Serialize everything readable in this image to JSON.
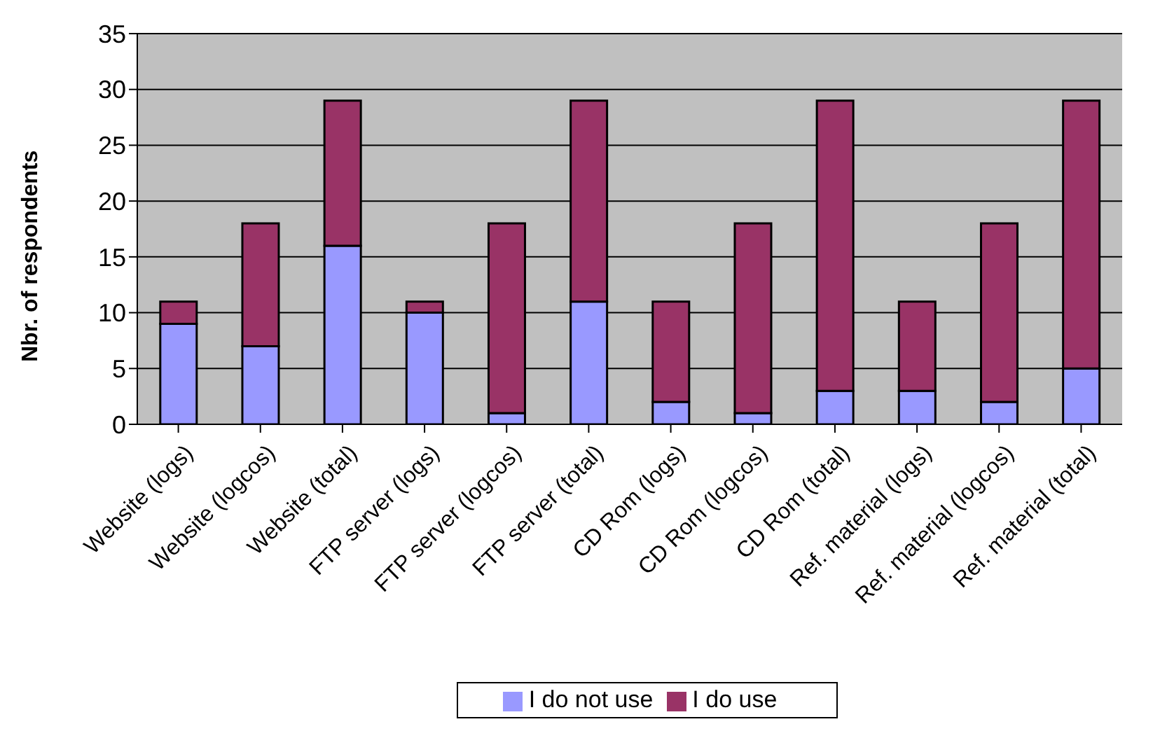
{
  "chart_data": {
    "type": "bar",
    "stacked": true,
    "ylabel": "Nbr. of respondents",
    "categories": [
      "Website (logs)",
      "Website (logcos)",
      "Website (total)",
      "FTP server (logs)",
      "FTP server (logcos)",
      "FTP server (total)",
      "CD Rom (logs)",
      "CD Rom (logcos)",
      "CD Rom (total)",
      "Ref. material (logs)",
      "Ref. material (logcos)",
      "Ref. material (total)"
    ],
    "series": [
      {
        "name": "I do not use",
        "color": "#9999ff",
        "values": [
          9,
          7,
          16,
          10,
          1,
          11,
          2,
          1,
          3,
          3,
          2,
          5
        ]
      },
      {
        "name": "I do use",
        "color": "#993366",
        "values": [
          2,
          11,
          13,
          1,
          17,
          18,
          9,
          17,
          26,
          8,
          16,
          24
        ]
      }
    ],
    "ylim": [
      0,
      35
    ],
    "yticks": [
      0,
      5,
      10,
      15,
      20,
      25,
      30,
      35
    ],
    "grid": "y",
    "legend": "bottom"
  }
}
